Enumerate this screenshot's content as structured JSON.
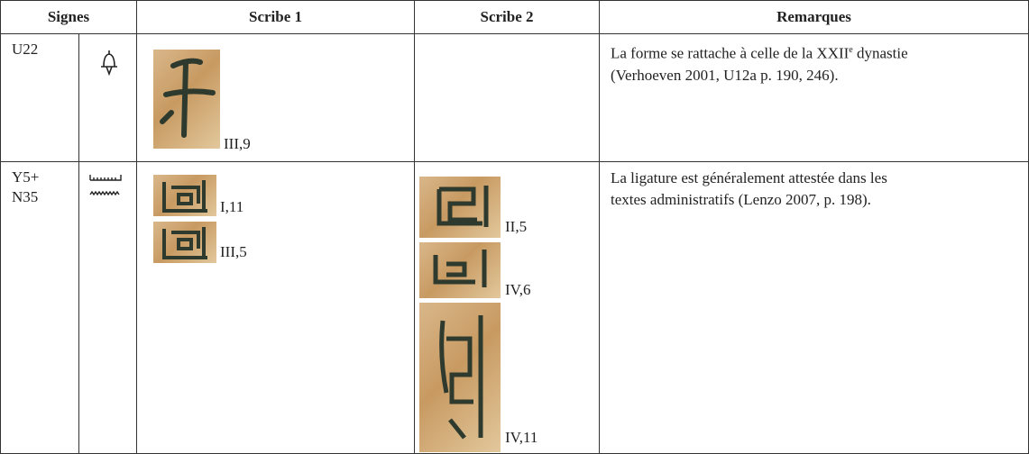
{
  "header": {
    "columns": [
      "Signes",
      "Scribe 1",
      "Scribe 2",
      "Remarques"
    ]
  },
  "rows": [
    {
      "code": [
        "U22"
      ],
      "scribe1": [
        "III,9"
      ],
      "remark": [
        "La forme se rattache à celle de la XXII",
        "e",
        " dynastie",
        "(Verhoeven 2001, U12a p. 190, 246)."
      ]
    },
    {
      "code": [
        "Y5+",
        "N35"
      ],
      "scribe1": [
        "I,11",
        "III,5"
      ],
      "scribe2": [
        "II,5",
        "IV,6",
        "IV,11"
      ],
      "remark": [
        "La ligature est généralement attestée dans les",
        "textes administratifs (Lenzo 2007, p. 198)."
      ]
    }
  ]
}
